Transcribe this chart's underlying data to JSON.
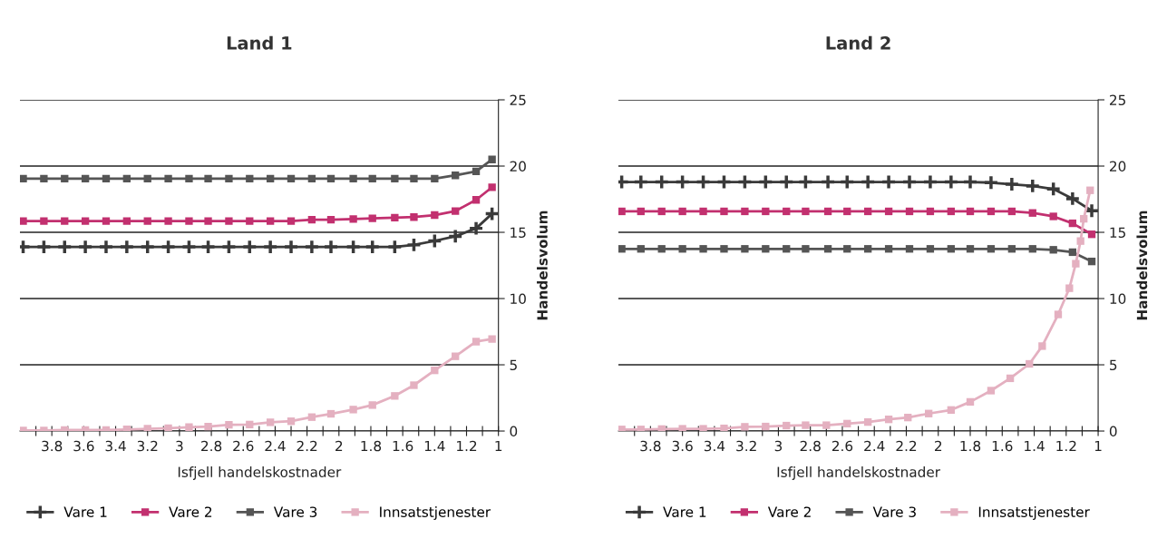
{
  "chart_data": [
    {
      "type": "line",
      "title": "Land 1",
      "xlabel": "Isfjell handelskostnader",
      "ylabel": "Handelsvolum",
      "x": [
        3.98,
        3.85,
        3.72,
        3.59,
        3.46,
        3.33,
        3.2,
        3.07,
        2.94,
        2.82,
        2.69,
        2.56,
        2.43,
        2.3,
        2.17,
        2.05,
        1.91,
        1.79,
        1.65,
        1.53,
        1.4,
        1.27,
        1.14,
        1.04
      ],
      "series": [
        {
          "name": "Vare 1",
          "color": "#3a3a3a",
          "marker": "cross",
          "values": [
            13.9,
            13.9,
            13.9,
            13.9,
            13.9,
            13.9,
            13.9,
            13.9,
            13.9,
            13.9,
            13.9,
            13.9,
            13.9,
            13.9,
            13.9,
            13.9,
            13.9,
            13.9,
            13.9,
            14.05,
            14.35,
            14.7,
            15.3,
            16.4
          ]
        },
        {
          "name": "Vare 2",
          "color": "#c2306f",
          "marker": "square",
          "values": [
            15.85,
            15.85,
            15.85,
            15.85,
            15.85,
            15.85,
            15.85,
            15.85,
            15.85,
            15.85,
            15.85,
            15.85,
            15.85,
            15.85,
            15.95,
            15.95,
            16.0,
            16.05,
            16.1,
            16.15,
            16.3,
            16.6,
            17.45,
            18.4
          ]
        },
        {
          "name": "Vare 3",
          "color": "#555555",
          "marker": "square",
          "values": [
            19.05,
            19.05,
            19.05,
            19.05,
            19.05,
            19.05,
            19.05,
            19.05,
            19.05,
            19.05,
            19.05,
            19.05,
            19.05,
            19.05,
            19.05,
            19.05,
            19.05,
            19.05,
            19.05,
            19.05,
            19.05,
            19.3,
            19.6,
            20.5
          ]
        },
        {
          "name": "Innsatstjenester",
          "color": "#e4b0c0",
          "marker": "square",
          "values": [
            0.05,
            0.05,
            0.07,
            0.07,
            0.07,
            0.12,
            0.17,
            0.22,
            0.29,
            0.34,
            0.47,
            0.49,
            0.66,
            0.74,
            1.05,
            1.3,
            1.62,
            1.96,
            2.65,
            3.46,
            4.58,
            5.64,
            6.75,
            6.95
          ]
        }
      ],
      "xlim": [
        4,
        1
      ],
      "xticks": [
        {
          "value": 3.9,
          "label": null
        },
        {
          "value": 3.8,
          "label": "3.8"
        },
        {
          "value": 3.7,
          "label": null
        },
        {
          "value": 3.6,
          "label": "3.6"
        },
        {
          "value": 3.5,
          "label": null
        },
        {
          "value": 3.4,
          "label": "3.4"
        },
        {
          "value": 3.3,
          "label": null
        },
        {
          "value": 3.2,
          "label": "3.2"
        },
        {
          "value": 3.1,
          "label": null
        },
        3,
        {
          "value": 2.9,
          "label": null
        },
        {
          "value": 2.8,
          "label": "2.8"
        },
        {
          "value": 2.7,
          "label": null
        },
        {
          "value": 2.6,
          "label": "2.6"
        },
        {
          "value": 2.5,
          "label": null
        },
        {
          "value": 2.4,
          "label": "2.4"
        },
        {
          "value": 2.3,
          "label": null
        },
        {
          "value": 2.2,
          "label": "2.2"
        },
        {
          "value": 2.1,
          "label": null
        },
        2,
        {
          "value": 1.9,
          "label": null
        },
        {
          "value": 1.8,
          "label": "1.8"
        },
        {
          "value": 1.7,
          "label": null
        },
        {
          "value": 1.6,
          "label": "1.6"
        },
        {
          "value": 1.5,
          "label": null
        },
        {
          "value": 1.4,
          "label": "1.4"
        },
        {
          "value": 1.3,
          "label": null
        },
        {
          "value": 1.2,
          "label": "1.2"
        },
        {
          "value": 1.1,
          "label": null
        },
        1
      ],
      "ylim": [
        0,
        25
      ],
      "yticks": [
        0,
        5,
        10,
        15,
        20,
        25
      ],
      "grid": "y",
      "legend": "bottom"
    },
    {
      "type": "line",
      "title": "Land 2",
      "xlabel": "Isfjell handelskostnader",
      "ylabel": "Handelsvolum",
      "x": [
        3.98,
        3.86,
        3.73,
        3.6,
        3.47,
        3.34,
        3.21,
        3.08,
        2.95,
        2.83,
        2.69,
        2.57,
        2.44,
        2.31,
        2.18,
        2.05,
        1.92,
        1.8,
        1.67,
        1.54,
        1.41,
        1.28,
        1.16,
        1.04
      ],
      "series": [
        {
          "name": "Vare 1",
          "color": "#3a3a3a",
          "marker": "cross",
          "values": [
            18.8,
            18.8,
            18.8,
            18.8,
            18.8,
            18.8,
            18.8,
            18.8,
            18.8,
            18.8,
            18.8,
            18.8,
            18.8,
            18.8,
            18.8,
            18.8,
            18.8,
            18.8,
            18.75,
            18.63,
            18.5,
            18.27,
            17.54,
            16.63
          ]
        },
        {
          "name": "Vare 2",
          "color": "#c2306f",
          "marker": "square",
          "values": [
            16.58,
            16.58,
            16.58,
            16.58,
            16.58,
            16.58,
            16.58,
            16.58,
            16.58,
            16.58,
            16.58,
            16.58,
            16.58,
            16.58,
            16.58,
            16.58,
            16.58,
            16.58,
            16.58,
            16.58,
            16.46,
            16.2,
            15.68,
            14.85
          ]
        },
        {
          "name": "Vare 3",
          "color": "#555555",
          "marker": "square",
          "values": [
            13.75,
            13.75,
            13.75,
            13.75,
            13.75,
            13.75,
            13.75,
            13.75,
            13.75,
            13.75,
            13.75,
            13.75,
            13.75,
            13.75,
            13.75,
            13.75,
            13.75,
            13.75,
            13.75,
            13.75,
            13.75,
            13.68,
            13.5,
            12.8
          ]
        },
        {
          "name": "Innsatstjenester",
          "color": "#e4b0c0",
          "marker": "square",
          "x": [
            3.98,
            3.86,
            3.73,
            3.6,
            3.47,
            3.34,
            3.21,
            3.08,
            2.95,
            2.83,
            2.7,
            2.57,
            2.44,
            2.31,
            2.19,
            2.06,
            1.92,
            1.8,
            1.67,
            1.55,
            1.43,
            1.35,
            1.25,
            1.18,
            1.14,
            1.11,
            1.09,
            1.05
          ],
          "values": [
            0.12,
            0.12,
            0.15,
            0.17,
            0.17,
            0.2,
            0.32,
            0.34,
            0.41,
            0.44,
            0.44,
            0.56,
            0.68,
            0.88,
            1.02,
            1.32,
            1.59,
            2.2,
            3.05,
            3.98,
            5.07,
            6.41,
            8.8,
            10.78,
            12.63,
            14.34,
            16.02,
            18.17
          ]
        }
      ],
      "xlim": [
        4,
        1
      ],
      "xticks": [
        {
          "value": 3.9,
          "label": null
        },
        {
          "value": 3.8,
          "label": "3.8"
        },
        {
          "value": 3.7,
          "label": null
        },
        {
          "value": 3.6,
          "label": "3.6"
        },
        {
          "value": 3.5,
          "label": null
        },
        {
          "value": 3.4,
          "label": "3.4"
        },
        {
          "value": 3.3,
          "label": null
        },
        {
          "value": 3.2,
          "label": "3.2"
        },
        {
          "value": 3.1,
          "label": null
        },
        3,
        {
          "value": 2.9,
          "label": null
        },
        {
          "value": 2.8,
          "label": "2.8"
        },
        {
          "value": 2.7,
          "label": null
        },
        {
          "value": 2.6,
          "label": "2.6"
        },
        {
          "value": 2.5,
          "label": null
        },
        {
          "value": 2.4,
          "label": "2.4"
        },
        {
          "value": 2.3,
          "label": null
        },
        {
          "value": 2.2,
          "label": "2.2"
        },
        {
          "value": 2.1,
          "label": null
        },
        2,
        {
          "value": 1.9,
          "label": null
        },
        {
          "value": 1.8,
          "label": "1.8"
        },
        {
          "value": 1.7,
          "label": null
        },
        {
          "value": 1.6,
          "label": "1.6"
        },
        {
          "value": 1.5,
          "label": null
        },
        {
          "value": 1.4,
          "label": "1.4"
        },
        {
          "value": 1.3,
          "label": null
        },
        {
          "value": 1.2,
          "label": "1.2"
        },
        {
          "value": 1.1,
          "label": null
        },
        1
      ],
      "ylim": [
        0,
        25
      ],
      "yticks": [
        0,
        5,
        10,
        15,
        20,
        25
      ],
      "grid": "y",
      "legend": "bottom"
    }
  ]
}
